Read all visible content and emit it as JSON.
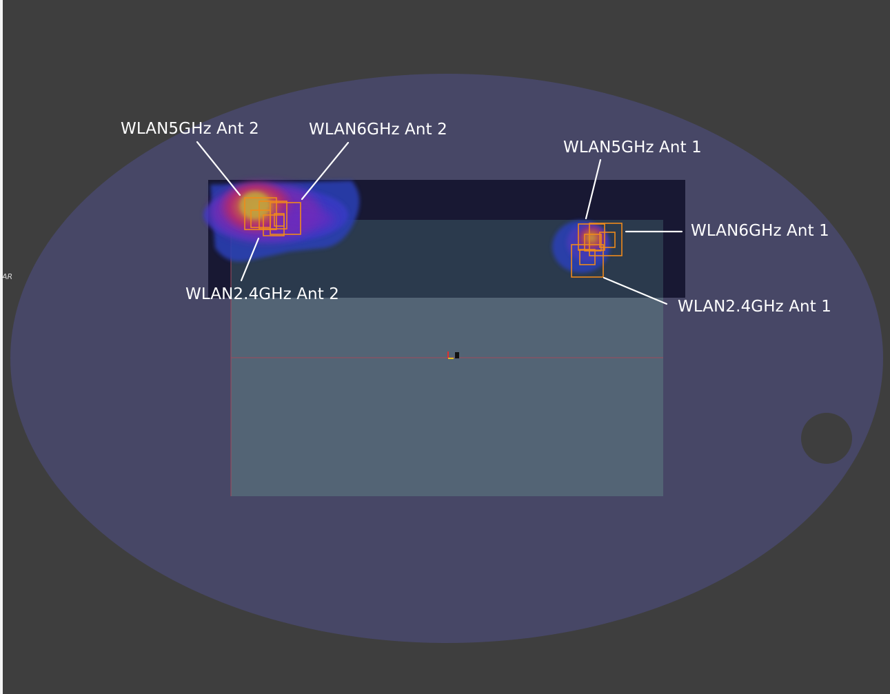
{
  "labels": {
    "wlan5_ant2": "WLAN5GHz Ant 2",
    "wlan6_ant2": "WLAN6GHz Ant 2",
    "wlan24_ant2": "WLAN2.4GHz Ant 2",
    "wlan5_ant1": "WLAN5GHz Ant 1",
    "wlan6_ant1": "WLAN6GHz Ant 1",
    "wlan24_ant1": "WLAN2.4GHz Ant 1",
    "edge_text": "AR"
  },
  "colors": {
    "background": "#3e3e3e",
    "phantom": "#474766",
    "device_body": "#536475",
    "device_top_band": "#181833",
    "antenna_outline": "#f08a1c",
    "callout_line": "#ffffff",
    "hotspot_core": "#d9a030",
    "hotspot_mid": "#c02a6a",
    "hotspot_outer": "#2a3fb8"
  }
}
